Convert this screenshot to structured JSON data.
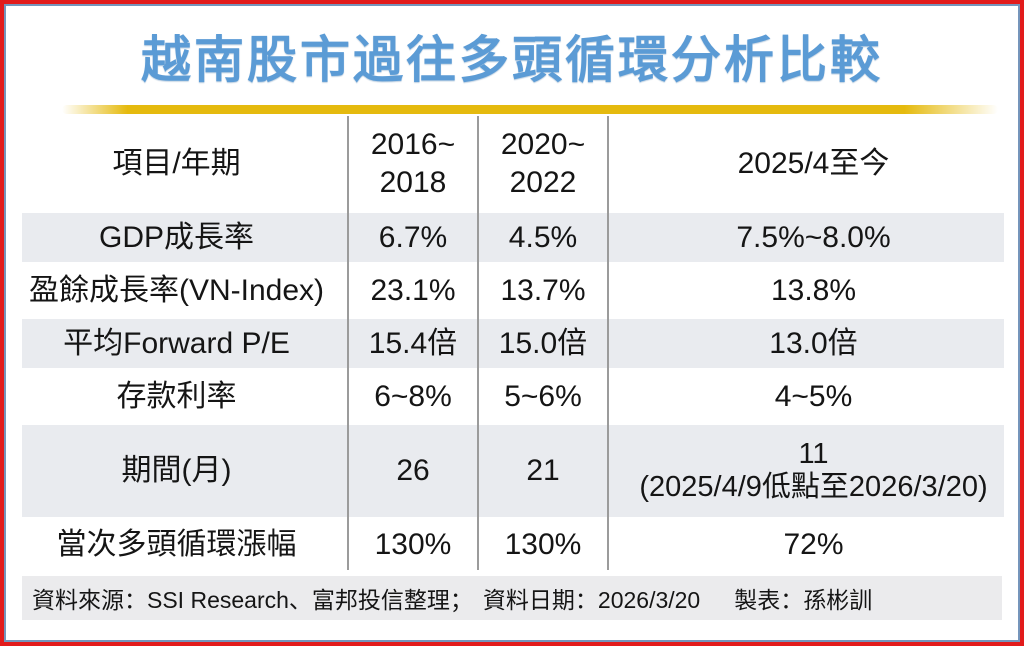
{
  "title": "越南股市過往多頭循環分析比較",
  "colors": {
    "title_blue": "#5b9bd5",
    "underline_gold": "#e5ba0e",
    "outer_border_red": "#e21b1b",
    "inner_border_blue": "#7595bb",
    "row_shade": "#e9ebef",
    "footer_bg": "#ebebed",
    "divider_gray": "#9b9b9b"
  },
  "chart_data": {
    "type": "table",
    "title": "越南股市過往多頭循環分析比較",
    "columns": [
      "項目/年期",
      "2016~2018",
      "2020~2022",
      "2025/4至今"
    ],
    "rows": [
      [
        "GDP成長率",
        "6.7%",
        "4.5%",
        "7.5%~8.0%"
      ],
      [
        "盈餘成長率(VN-Index)",
        "23.1%",
        "13.7%",
        "13.8%"
      ],
      [
        "平均Forward P/E",
        "15.4倍",
        "15.0倍",
        "13.0倍"
      ],
      [
        "存款利率",
        "6~8%",
        "5~6%",
        "4~5%"
      ],
      [
        "期間(月)",
        "26",
        "21",
        "11 (2025/4/9低點至2026/3/20)"
      ],
      [
        "當次多頭循環漲幅",
        "130%",
        "130%",
        "72%"
      ]
    ],
    "source_note": "資料來源：SSI Research、富邦投信整理；資料日期：2026/3/20　製表：孫彬訓"
  },
  "table": {
    "header": {
      "col1": "項目/年期",
      "col2_line1": "2016~",
      "col2_line2": "2018",
      "col3_line1": "2020~",
      "col3_line2": "2022",
      "col4": "2025/4至今"
    },
    "rows": [
      {
        "label": "GDP成長率",
        "values": [
          "6.7%",
          "4.5%",
          "7.5%~8.0%"
        ]
      },
      {
        "label": "盈餘成長率(VN-Index)",
        "values": [
          "23.1%",
          "13.7%",
          "13.8%"
        ]
      },
      {
        "label": "平均Forward P/E",
        "values": [
          "15.4倍",
          "15.0倍",
          "13.0倍"
        ]
      },
      {
        "label": "存款利率",
        "values": [
          "6~8%",
          "5~6%",
          "4~5%"
        ]
      },
      {
        "label": "期間(月)",
        "values": [
          "26",
          "21",
          "11"
        ],
        "note": "(2025/4/9低點至2026/3/20)"
      },
      {
        "label": "當次多頭循環漲幅",
        "values": [
          "130%",
          "130%",
          "72%"
        ]
      }
    ]
  },
  "footer": {
    "source": "資料來源：SSI Research、富邦投信整理；",
    "date": "資料日期：2026/3/20",
    "author": "製表：孫彬訓"
  }
}
